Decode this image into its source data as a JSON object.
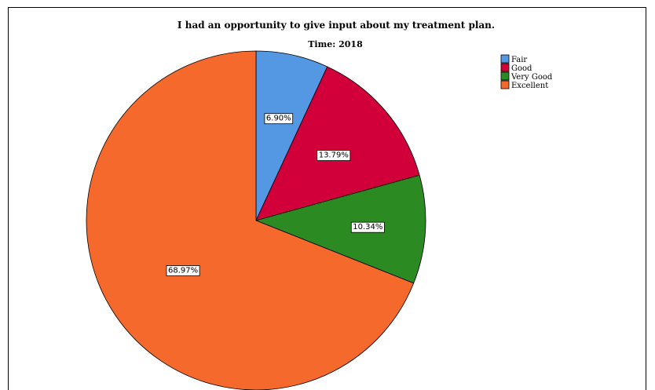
{
  "chart_data": {
    "type": "pie",
    "title": "I had an opportunity to give input about my treatment plan.",
    "subtitle": "Time: 2018",
    "start_angle_deg": 0,
    "direction": "clockwise",
    "legend_position": "top-right",
    "slices": [
      {
        "label": "Fair",
        "value": 6.9,
        "display": "6.90%",
        "color": "#5497e3"
      },
      {
        "label": "Good",
        "value": 13.79,
        "display": "13.79%",
        "color": "#d1003a"
      },
      {
        "label": "Very Good",
        "value": 10.34,
        "display": "10.34%",
        "color": "#2b8a21"
      },
      {
        "label": "Excellent",
        "value": 68.97,
        "display": "68.97%",
        "color": "#f6692c"
      }
    ]
  }
}
